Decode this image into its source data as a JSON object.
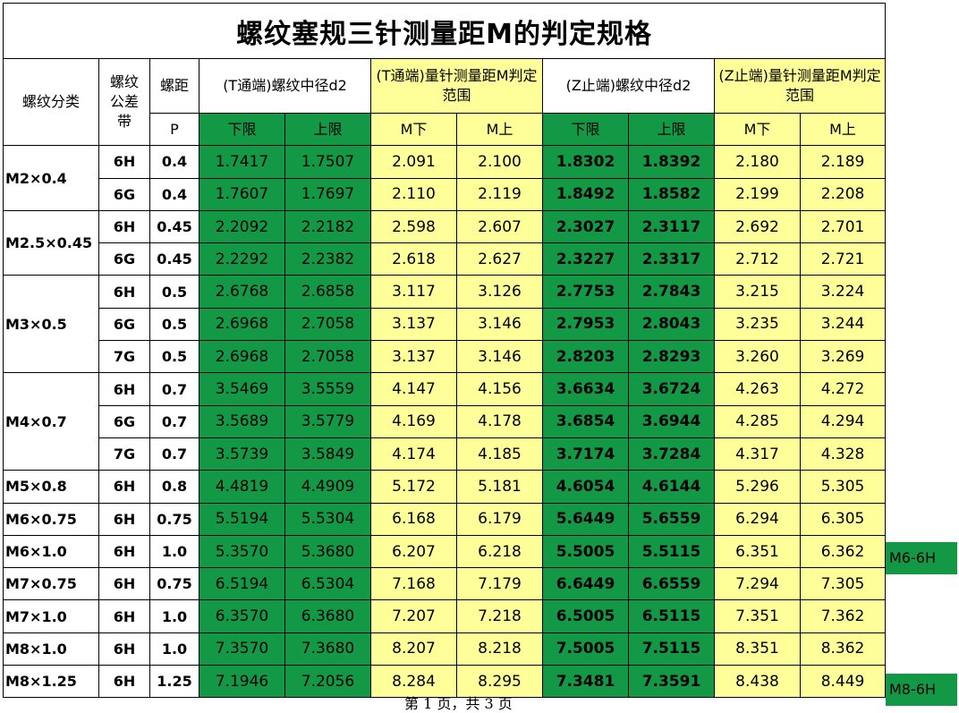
{
  "title": "螺纹塞规三针测量距M的判定规格",
  "header": {
    "thread_class": "螺纹分类",
    "tolerance_band": "螺纹公差带",
    "pitch": "螺距",
    "pitch_symbol": "P",
    "t_d2": "(T通端)螺纹中径d2",
    "t_m": "(T通端)量针测量距M判定范围",
    "z_d2": "(Z止端)螺纹中径d2",
    "z_m": "(Z止端)量针测量距M判定范围",
    "lower": "下限",
    "upper": "上限",
    "m_lower": "M下",
    "m_upper": "M上"
  },
  "rows": [
    {
      "thread": "M2×0.4",
      "tol": "6H",
      "p": "0.4",
      "td2_lo": "1.7417",
      "td2_hi": "1.7507",
      "tm_lo": "2.091",
      "tm_hi": "2.100",
      "zd2_lo": "1.8302",
      "zd2_hi": "1.8392",
      "zm_lo": "2.180",
      "zm_hi": "2.189"
    },
    {
      "thread": "M2×0.4",
      "tol": "6G",
      "p": "0.4",
      "td2_lo": "1.7607",
      "td2_hi": "1.7697",
      "tm_lo": "2.110",
      "tm_hi": "2.119",
      "zd2_lo": "1.8492",
      "zd2_hi": "1.8582",
      "zm_lo": "2.199",
      "zm_hi": "2.208"
    },
    {
      "thread": "M2.5×0.45",
      "tol": "6H",
      "p": "0.45",
      "td2_lo": "2.2092",
      "td2_hi": "2.2182",
      "tm_lo": "2.598",
      "tm_hi": "2.607",
      "zd2_lo": "2.3027",
      "zd2_hi": "2.3117",
      "zm_lo": "2.692",
      "zm_hi": "2.701"
    },
    {
      "thread": "M2.5×0.45",
      "tol": "6G",
      "p": "0.45",
      "td2_lo": "2.2292",
      "td2_hi": "2.2382",
      "tm_lo": "2.618",
      "tm_hi": "2.627",
      "zd2_lo": "2.3227",
      "zd2_hi": "2.3317",
      "zm_lo": "2.712",
      "zm_hi": "2.721"
    },
    {
      "thread": "M3×0.5",
      "tol": "6H",
      "p": "0.5",
      "td2_lo": "2.6768",
      "td2_hi": "2.6858",
      "tm_lo": "3.117",
      "tm_hi": "3.126",
      "zd2_lo": "2.7753",
      "zd2_hi": "2.7843",
      "zm_lo": "3.215",
      "zm_hi": "3.224"
    },
    {
      "thread": "M3×0.5",
      "tol": "6G",
      "p": "0.5",
      "td2_lo": "2.6968",
      "td2_hi": "2.7058",
      "tm_lo": "3.137",
      "tm_hi": "3.146",
      "zd2_lo": "2.7953",
      "zd2_hi": "2.8043",
      "zm_lo": "3.235",
      "zm_hi": "3.244"
    },
    {
      "thread": "M3×0.5",
      "tol": "7G",
      "p": "0.5",
      "td2_lo": "2.6968",
      "td2_hi": "2.7058",
      "tm_lo": "3.137",
      "tm_hi": "3.146",
      "zd2_lo": "2.8203",
      "zd2_hi": "2.8293",
      "zm_lo": "3.260",
      "zm_hi": "3.269"
    },
    {
      "thread": "M4×0.7",
      "tol": "6H",
      "p": "0.7",
      "td2_lo": "3.5469",
      "td2_hi": "3.5559",
      "tm_lo": "4.147",
      "tm_hi": "4.156",
      "zd2_lo": "3.6634",
      "zd2_hi": "3.6724",
      "zm_lo": "4.263",
      "zm_hi": "4.272"
    },
    {
      "thread": "M4×0.7",
      "tol": "6G",
      "p": "0.7",
      "td2_lo": "3.5689",
      "td2_hi": "3.5779",
      "tm_lo": "4.169",
      "tm_hi": "4.178",
      "zd2_lo": "3.6854",
      "zd2_hi": "3.6944",
      "zm_lo": "4.285",
      "zm_hi": "4.294"
    },
    {
      "thread": "M4×0.7",
      "tol": "7G",
      "p": "0.7",
      "td2_lo": "3.5739",
      "td2_hi": "3.5849",
      "tm_lo": "4.174",
      "tm_hi": "4.185",
      "zd2_lo": "3.7174",
      "zd2_hi": "3.7284",
      "zm_lo": "4.317",
      "zm_hi": "4.328"
    },
    {
      "thread": "M5×0.8",
      "tol": "6H",
      "p": "0.8",
      "td2_lo": "4.4819",
      "td2_hi": "4.4909",
      "tm_lo": "5.172",
      "tm_hi": "5.181",
      "zd2_lo": "4.6054",
      "zd2_hi": "4.6144",
      "zm_lo": "5.296",
      "zm_hi": "5.305"
    },
    {
      "thread": "M6×0.75",
      "tol": "6H",
      "p": "0.75",
      "td2_lo": "5.5194",
      "td2_hi": "5.5304",
      "tm_lo": "6.168",
      "tm_hi": "6.179",
      "zd2_lo": "5.6449",
      "zd2_hi": "5.6559",
      "zm_lo": "6.294",
      "zm_hi": "6.305"
    },
    {
      "thread": "M6×1.0",
      "tol": "6H",
      "p": "1.0",
      "td2_lo": "5.3570",
      "td2_hi": "5.3680",
      "tm_lo": "6.207",
      "tm_hi": "6.218",
      "zd2_lo": "5.5005",
      "zd2_hi": "5.5115",
      "zm_lo": "6.351",
      "zm_hi": "6.362"
    },
    {
      "thread": "M7×0.75",
      "tol": "6H",
      "p": "0.75",
      "td2_lo": "6.5194",
      "td2_hi": "6.5304",
      "tm_lo": "7.168",
      "tm_hi": "7.179",
      "zd2_lo": "6.6449",
      "zd2_hi": "6.6559",
      "zm_lo": "7.294",
      "zm_hi": "7.305"
    },
    {
      "thread": "M7×1.0",
      "tol": "6H",
      "p": "1.0",
      "td2_lo": "6.3570",
      "td2_hi": "6.3680",
      "tm_lo": "7.207",
      "tm_hi": "7.218",
      "zd2_lo": "6.5005",
      "zd2_hi": "6.5115",
      "zm_lo": "7.351",
      "zm_hi": "7.362"
    },
    {
      "thread": "M8×1.0",
      "tol": "6H",
      "p": "1.0",
      "td2_lo": "7.3570",
      "td2_hi": "7.3680",
      "tm_lo": "8.207",
      "tm_hi": "8.218",
      "zd2_lo": "7.5005",
      "zd2_hi": "7.5115",
      "zm_lo": "8.351",
      "zm_hi": "8.362"
    },
    {
      "thread": "M8×1.25",
      "tol": "6H",
      "p": "1.25",
      "td2_lo": "7.1946",
      "td2_hi": "7.2056",
      "tm_lo": "8.284",
      "tm_hi": "8.295",
      "zd2_lo": "7.3481",
      "zd2_hi": "7.3591",
      "zm_lo": "8.438",
      "zm_hi": "8.449"
    }
  ],
  "side_tags": {
    "m6": "M6-6H",
    "m8": "M8-6H"
  },
  "footer": "第 1 页，共 3 页",
  "colors": {
    "green": "#139945",
    "yellow": "#ffff99"
  }
}
